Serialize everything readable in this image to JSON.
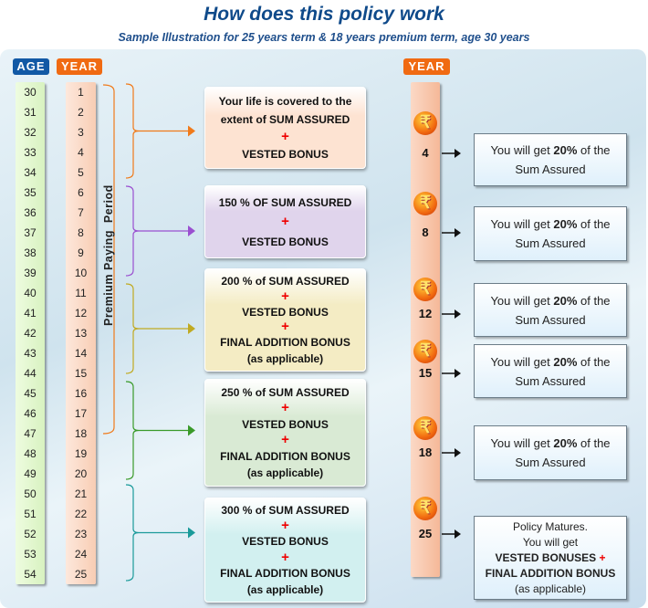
{
  "title": "How does this policy work",
  "subtitle": "Sample Illustration for 25 years term & 18 years premium term, age 30 years",
  "age_label": "AGE",
  "year_label": "YEAR",
  "right_year_label": "YEAR",
  "ages": [
    "30",
    "31",
    "32",
    "33",
    "34",
    "35",
    "36",
    "37",
    "38",
    "39",
    "40",
    "41",
    "42",
    "43",
    "44",
    "45",
    "46",
    "47",
    "48",
    "49",
    "50",
    "51",
    "52",
    "53",
    "54"
  ],
  "years": [
    "1",
    "2",
    "3",
    "4",
    "5",
    "6",
    "7",
    "8",
    "9",
    "10",
    "11",
    "12",
    "13",
    "14",
    "15",
    "16",
    "17",
    "18",
    "19",
    "20",
    "21",
    "22",
    "23",
    "24",
    "25"
  ],
  "premium_period_label": "Premium Paying  Period",
  "boxes": [
    {
      "lines": [
        "Your life is covered to the",
        "extent of SUM ASSURED",
        "+",
        "VESTED BONUS"
      ],
      "color": "#fde3d2",
      "arrow": "#f07a1a"
    },
    {
      "lines": [
        "150 % OF SUM ASSURED",
        "+",
        "VESTED BONUS"
      ],
      "color": "#e0d4ec",
      "arrow": "#9a4fd0"
    },
    {
      "lines": [
        "200 % of SUM ASSURED",
        "+",
        "VESTED BONUS",
        "+",
        "FINAL ADDITION BONUS",
        "(as applicable)"
      ],
      "color": "#f4ecc4",
      "arrow": "#c0aa22"
    },
    {
      "lines": [
        "250 % of SUM ASSURED",
        "+",
        "VESTED BONUS",
        "+",
        "FINAL ADDITION BONUS",
        "(as applicable)"
      ],
      "color": "#d9ead4",
      "arrow": "#3a9a2a"
    },
    {
      "lines": [
        "300 % of SUM ASSURED",
        "+",
        "VESTED BONUS",
        "+",
        "FINAL ADDITION BONUS",
        "(as applicable)"
      ],
      "color": "#d2f0f0",
      "arrow": "#1a9a9a"
    }
  ],
  "payouts": [
    {
      "year": "4",
      "pre": "You will get ",
      "pct": "20%",
      "post": " of the",
      "line2": "Sum Assured"
    },
    {
      "year": "8",
      "pre": "You will get ",
      "pct": "20%",
      "post": " of the",
      "line2": "Sum Assured"
    },
    {
      "year": "12",
      "pre": "You will get ",
      "pct": "20%",
      "post": " of the",
      "line2": "Sum Assured"
    },
    {
      "year": "15",
      "pre": "You will get ",
      "pct": "20%",
      "post": " of the",
      "line2": "Sum Assured"
    },
    {
      "year": "18",
      "pre": "You will get ",
      "pct": "20%",
      "post": " of the",
      "line2": "Sum Assured"
    }
  ],
  "maturity": {
    "year": "25",
    "l1": "Policy Matures.",
    "l2": "You will get",
    "l3": "VESTED BONUSES",
    "plus": "+",
    "l4": "FINAL ADDITION BONUS",
    "l5": "(as applicable)"
  },
  "rupee_icon": "₹"
}
